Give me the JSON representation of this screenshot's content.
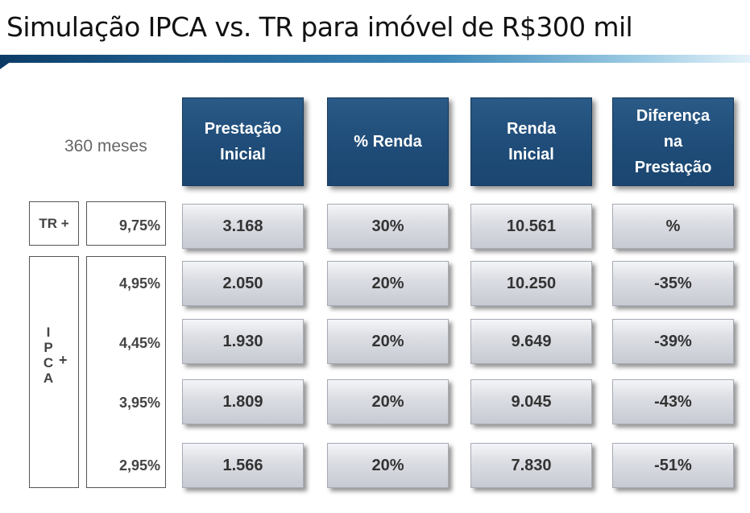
{
  "title": "Simulação IPCA vs. TR para imóvel de R$300 mil",
  "months_label": "360 meses",
  "headers": {
    "h1_line1": "Prestação",
    "h1_line2": "Inicial",
    "h2": "% Renda",
    "h3_line1": "Renda",
    "h3_line2": "Inicial",
    "h4_line1": "Diferença",
    "h4_line2": "na",
    "h4_line3": "Prestação"
  },
  "tr_label": "TR +",
  "ipca_label": {
    "letters": [
      "I",
      "P",
      "C",
      "A"
    ],
    "plus": "+"
  },
  "rows": [
    {
      "rate": "9,75%",
      "prestacao": "3.168",
      "renda_pct": "30%",
      "renda": "10.561",
      "diferenca": "%"
    },
    {
      "rate": "4,95%",
      "prestacao": "2.050",
      "renda_pct": "20%",
      "renda": "10.250",
      "diferenca": "-35%"
    },
    {
      "rate": "4,45%",
      "prestacao": "1.930",
      "renda_pct": "20%",
      "renda": "9.649",
      "diferenca": "-39%"
    },
    {
      "rate": "3,95%",
      "prestacao": "1.809",
      "renda_pct": "20%",
      "renda": "9.045",
      "diferenca": "-43%"
    },
    {
      "rate": "2,95%",
      "prestacao": "1.566",
      "renda_pct": "20%",
      "renda": "7.830",
      "diferenca": "-51%"
    }
  ]
}
